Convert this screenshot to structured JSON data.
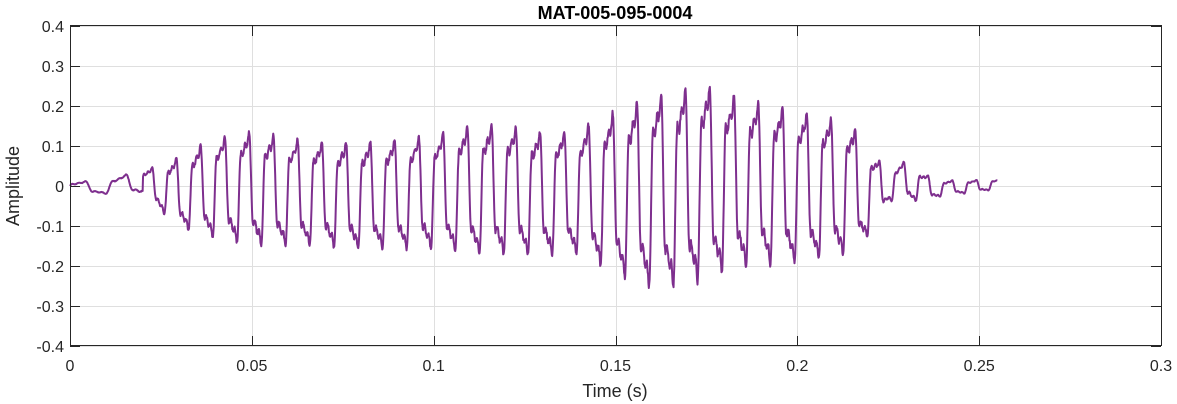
{
  "chart_data": {
    "type": "line",
    "title": "MAT-005-095-0004",
    "xlabel": "Time (s)",
    "ylabel": "Amplitude",
    "xlim": [
      0,
      0.3
    ],
    "ylim": [
      -0.4,
      0.4
    ],
    "xticks": [
      0,
      0.05,
      0.1,
      0.15,
      0.2,
      0.25,
      0.3
    ],
    "xtick_labels": [
      "0",
      "0.05",
      "0.1",
      "0.15",
      "0.2",
      "0.25",
      "0.3"
    ],
    "yticks": [
      -0.4,
      -0.3,
      -0.2,
      -0.1,
      0,
      0.1,
      0.2,
      0.3,
      0.4
    ],
    "ytick_labels": [
      "-0.4",
      "-0.3",
      "-0.2",
      "-0.1",
      "0",
      "0.1",
      "0.2",
      "0.3",
      "0.4"
    ],
    "grid": true,
    "series": [
      {
        "color": "#7E2F8E",
        "duration": 0.255,
        "envelope": [
          {
            "t": 0.0,
            "max": 0.015,
            "min": -0.025
          },
          {
            "t": 0.01,
            "max": 0.02,
            "min": -0.025
          },
          {
            "t": 0.02,
            "max": 0.05,
            "min": -0.03
          },
          {
            "t": 0.025,
            "max": 0.07,
            "min": -0.08
          },
          {
            "t": 0.03,
            "max": 0.1,
            "min": -0.13
          },
          {
            "t": 0.04,
            "max": 0.16,
            "min": -0.17
          },
          {
            "t": 0.05,
            "max": 0.18,
            "min": -0.19
          },
          {
            "t": 0.06,
            "max": 0.16,
            "min": -0.19
          },
          {
            "t": 0.07,
            "max": 0.15,
            "min": -0.19
          },
          {
            "t": 0.08,
            "max": 0.15,
            "min": -0.2
          },
          {
            "t": 0.09,
            "max": 0.16,
            "min": -0.2
          },
          {
            "t": 0.1,
            "max": 0.17,
            "min": -0.2
          },
          {
            "t": 0.11,
            "max": 0.2,
            "min": -0.22
          },
          {
            "t": 0.12,
            "max": 0.2,
            "min": -0.22
          },
          {
            "t": 0.13,
            "max": 0.18,
            "min": -0.22
          },
          {
            "t": 0.14,
            "max": 0.19,
            "min": -0.22
          },
          {
            "t": 0.145,
            "max": 0.22,
            "min": -0.25
          },
          {
            "t": 0.15,
            "max": 0.25,
            "min": -0.28
          },
          {
            "t": 0.16,
            "max": 0.3,
            "min": -0.33
          },
          {
            "t": 0.17,
            "max": 0.32,
            "min": -0.32
          },
          {
            "t": 0.175,
            "max": 0.33,
            "min": -0.31
          },
          {
            "t": 0.18,
            "max": 0.3,
            "min": -0.28
          },
          {
            "t": 0.19,
            "max": 0.27,
            "min": -0.26
          },
          {
            "t": 0.2,
            "max": 0.25,
            "min": -0.25
          },
          {
            "t": 0.21,
            "max": 0.22,
            "min": -0.23
          },
          {
            "t": 0.215,
            "max": 0.2,
            "min": -0.22
          },
          {
            "t": 0.22,
            "max": 0.12,
            "min": -0.15
          },
          {
            "t": 0.225,
            "max": 0.05,
            "min": -0.05
          },
          {
            "t": 0.23,
            "max": 0.08,
            "min": -0.05
          },
          {
            "t": 0.235,
            "max": 0.04,
            "min": -0.05
          },
          {
            "t": 0.24,
            "max": 0.02,
            "min": -0.03
          },
          {
            "t": 0.25,
            "max": 0.02,
            "min": -0.02
          },
          {
            "t": 0.255,
            "max": 0.02,
            "min": -0.01
          }
        ]
      }
    ]
  }
}
